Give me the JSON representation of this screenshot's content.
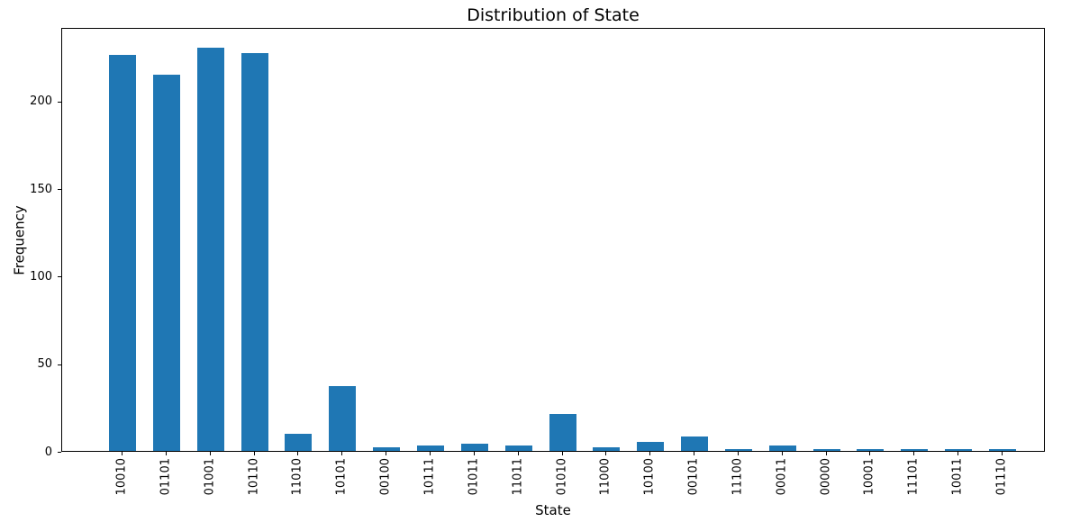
{
  "chart_data": {
    "type": "bar",
    "title": "Distribution of State",
    "xlabel": "State",
    "ylabel": "Frequency",
    "categories": [
      "10010",
      "01101",
      "01001",
      "10110",
      "11010",
      "10101",
      "00100",
      "10111",
      "01011",
      "11011",
      "01010",
      "11000",
      "10100",
      "00101",
      "11100",
      "00011",
      "00000",
      "10001",
      "11101",
      "10011",
      "01110"
    ],
    "values": [
      226,
      215,
      230,
      227,
      10,
      37,
      2,
      3,
      4,
      3,
      21,
      2,
      5,
      8,
      1,
      3,
      1,
      1,
      1,
      1,
      1
    ],
    "yticks": [
      0,
      50,
      100,
      150,
      200
    ],
    "ylim": [
      0,
      242
    ],
    "xtick_rotation": 90,
    "grid": false,
    "legend": false,
    "bar_color": "#1f77b4",
    "text_color": "#000000"
  }
}
